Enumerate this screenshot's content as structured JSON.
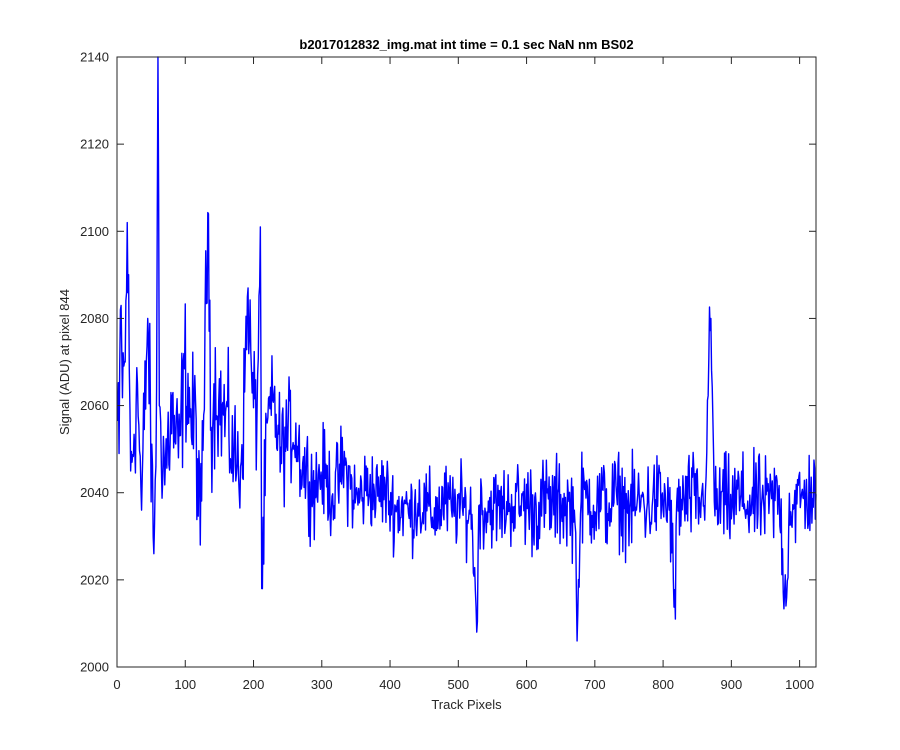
{
  "chart_data": {
    "type": "line",
    "title": "b2017012832_img.mat int time = 0.1 sec  NaN nm BS02",
    "xlabel": "Track Pixels",
    "ylabel": "Signal (ADU) at pixel 844",
    "xlim": [
      0,
      1024
    ],
    "ylim": [
      2000,
      2140
    ],
    "xticks": [
      0,
      100,
      200,
      300,
      400,
      500,
      600,
      700,
      800,
      900,
      1000
    ],
    "yticks": [
      2000,
      2020,
      2040,
      2060,
      2080,
      2100,
      2120,
      2140
    ],
    "grid": false,
    "legend": "none",
    "series": [
      {
        "color": "#0000ff",
        "x_start": 1,
        "x_step": 1,
        "keypoints": [
          [
            1,
            2055
          ],
          [
            3,
            2049
          ],
          [
            5,
            2082
          ],
          [
            8,
            2066
          ],
          [
            12,
            2070
          ],
          [
            15,
            2102
          ],
          [
            20,
            2045
          ],
          [
            30,
            2065
          ],
          [
            36,
            2036
          ],
          [
            45,
            2080
          ],
          [
            50,
            2049
          ],
          [
            54,
            2026
          ],
          [
            58,
            2064
          ],
          [
            60,
            2140
          ],
          [
            62,
            2060
          ],
          [
            70,
            2045
          ],
          [
            80,
            2058
          ],
          [
            90,
            2048
          ],
          [
            100,
            2069
          ],
          [
            104,
            2064
          ],
          [
            110,
            2055
          ],
          [
            115,
            2058
          ],
          [
            122,
            2028
          ],
          [
            128,
            2068
          ],
          [
            134,
            2104
          ],
          [
            138,
            2055
          ],
          [
            145,
            2065
          ],
          [
            150,
            2060
          ],
          [
            160,
            2057
          ],
          [
            170,
            2049
          ],
          [
            180,
            2045
          ],
          [
            185,
            2056
          ],
          [
            192,
            2087
          ],
          [
            198,
            2063
          ],
          [
            205,
            2057
          ],
          [
            210,
            2101
          ],
          [
            212,
            2018
          ],
          [
            220,
            2056
          ],
          [
            230,
            2060
          ],
          [
            240,
            2049
          ],
          [
            250,
            2053
          ],
          [
            260,
            2055
          ],
          [
            270,
            2047
          ],
          [
            280,
            2044
          ],
          [
            290,
            2041
          ],
          [
            300,
            2045
          ],
          [
            310,
            2041
          ],
          [
            320,
            2040
          ],
          [
            330,
            2046
          ],
          [
            340,
            2043
          ],
          [
            350,
            2038
          ],
          [
            360,
            2040
          ],
          [
            370,
            2042
          ],
          [
            380,
            2039
          ],
          [
            390,
            2041
          ],
          [
            400,
            2038
          ],
          [
            410,
            2036
          ],
          [
            420,
            2037
          ],
          [
            430,
            2035
          ],
          [
            440,
            2038
          ],
          [
            450,
            2037
          ],
          [
            460,
            2035
          ],
          [
            470,
            2036
          ],
          [
            480,
            2038
          ],
          [
            490,
            2036
          ],
          [
            500,
            2037
          ],
          [
            510,
            2036
          ],
          [
            520,
            2035
          ],
          [
            527,
            2008
          ],
          [
            530,
            2037
          ],
          [
            540,
            2036
          ],
          [
            550,
            2037
          ],
          [
            560,
            2036
          ],
          [
            570,
            2037
          ],
          [
            580,
            2038
          ],
          [
            590,
            2037
          ],
          [
            600,
            2038
          ],
          [
            610,
            2036
          ],
          [
            620,
            2037
          ],
          [
            630,
            2038
          ],
          [
            640,
            2037
          ],
          [
            650,
            2038
          ],
          [
            660,
            2037
          ],
          [
            670,
            2036
          ],
          [
            675,
            2012
          ],
          [
            680,
            2038
          ],
          [
            690,
            2039
          ],
          [
            700,
            2037
          ],
          [
            710,
            2038
          ],
          [
            720,
            2037
          ],
          [
            730,
            2039
          ],
          [
            740,
            2038
          ],
          [
            750,
            2036
          ],
          [
            760,
            2037
          ],
          [
            770,
            2038
          ],
          [
            780,
            2037
          ],
          [
            790,
            2039
          ],
          [
            800,
            2038
          ],
          [
            810,
            2037
          ],
          [
            818,
            2011
          ],
          [
            820,
            2038
          ],
          [
            830,
            2037
          ],
          [
            840,
            2039
          ],
          [
            850,
            2038
          ],
          [
            860,
            2037
          ],
          [
            870,
            2080
          ],
          [
            875,
            2038
          ],
          [
            880,
            2037
          ],
          [
            890,
            2038
          ],
          [
            900,
            2037
          ],
          [
            910,
            2039
          ],
          [
            920,
            2038
          ],
          [
            930,
            2037
          ],
          [
            940,
            2038
          ],
          [
            950,
            2037
          ],
          [
            960,
            2038
          ],
          [
            970,
            2039
          ],
          [
            980,
            2014
          ],
          [
            985,
            2038
          ],
          [
            990,
            2037
          ],
          [
            1000,
            2038
          ],
          [
            1010,
            2039
          ],
          [
            1017,
            2040
          ],
          [
            1024,
            2040
          ]
        ],
        "noise_amplitude": [
          [
            0,
            12
          ],
          [
            100,
            12
          ],
          [
            200,
            10
          ],
          [
            300,
            8
          ],
          [
            400,
            7
          ],
          [
            550,
            7
          ],
          [
            600,
            8
          ],
          [
            800,
            8
          ],
          [
            1024,
            8
          ]
        ]
      }
    ]
  }
}
